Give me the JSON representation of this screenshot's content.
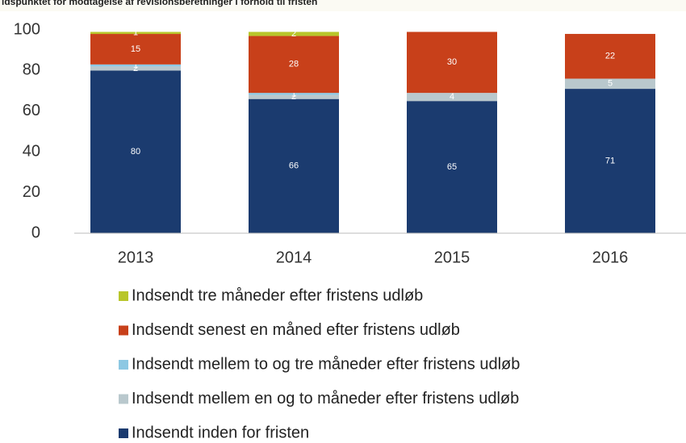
{
  "chart_data": {
    "type": "stacked_bar",
    "title": "idspunktet for modtagelse af revisionsberetninger i forhold til fristen",
    "categories": [
      "2013",
      "2014",
      "2015",
      "2016"
    ],
    "series": [
      {
        "name": "Indsendt inden for fristen",
        "color": "#1b3b6f",
        "values": [
          80,
          66,
          65,
          71
        ]
      },
      {
        "name": "Indsendt mellem en og to måneder efter fristens udløb",
        "color": "#b9c8cd",
        "values": [
          2,
          2,
          4,
          5
        ]
      },
      {
        "name": "Indsendt mellem to og tre måneder efter fristens udløb",
        "color": "#8dc8e3",
        "values": [
          1,
          1,
          null,
          null
        ]
      },
      {
        "name": "Indsendt senest en måned efter fristens udløb",
        "color": "#c8401a",
        "values": [
          15,
          28,
          30,
          22
        ]
      },
      {
        "name": "Indsendt tre måneder efter fristens udløb",
        "color": "#b8c62b",
        "values": [
          1,
          2,
          null,
          null
        ]
      }
    ],
    "ylim": [
      0,
      100
    ],
    "yticks": [
      0,
      20,
      40,
      60,
      80,
      100
    ],
    "grid": false
  }
}
